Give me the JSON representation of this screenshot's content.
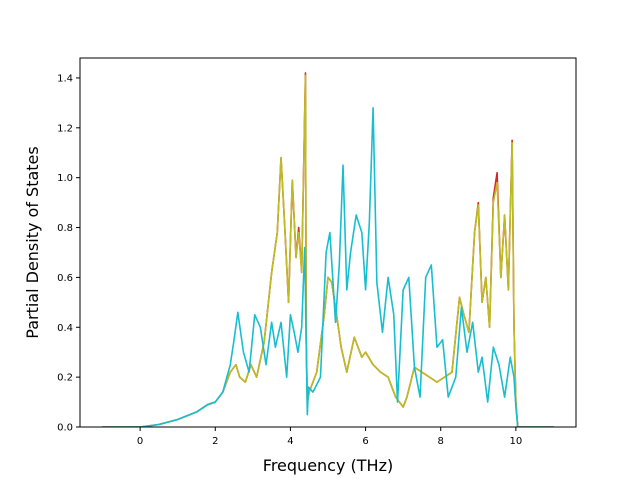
{
  "chart_data": {
    "type": "line",
    "title": "",
    "xlabel": "Frequency (THz)",
    "ylabel": "Partial Density of States",
    "xlim": [
      -1.6,
      11.6
    ],
    "ylim": [
      0,
      1.48
    ],
    "xticks": [
      0,
      2,
      4,
      6,
      8,
      10
    ],
    "yticks": [
      0.0,
      0.2,
      0.4,
      0.6,
      0.8,
      1.0,
      1.2,
      1.4
    ],
    "xtick_labels": [
      "0",
      "2",
      "4",
      "6",
      "8",
      "10"
    ],
    "ytick_labels": [
      "0.0",
      "0.2",
      "0.4",
      "0.6",
      "0.8",
      "1.0",
      "1.2",
      "1.4"
    ],
    "grid": false,
    "legend": "none",
    "series": [
      {
        "color": "#d62728",
        "x": [
          -1.0,
          0.0,
          0.5,
          1.0,
          1.5,
          1.8,
          2.0,
          2.2,
          2.4,
          2.55,
          2.65,
          2.8,
          2.95,
          3.1,
          3.3,
          3.5,
          3.65,
          3.75,
          3.85,
          3.95,
          4.05,
          4.15,
          4.22,
          4.3,
          4.4,
          4.42,
          4.45,
          4.5,
          4.7,
          4.9,
          5.0,
          5.1,
          5.2,
          5.35,
          5.5,
          5.7,
          5.9,
          6.0,
          6.2,
          6.4,
          6.6,
          6.8,
          7.0,
          7.1,
          7.3,
          7.5,
          7.7,
          7.9,
          8.1,
          8.3,
          8.5,
          8.6,
          8.75,
          8.9,
          9.0,
          9.1,
          9.2,
          9.3,
          9.4,
          9.5,
          9.6,
          9.7,
          9.8,
          9.9,
          9.95,
          10.0,
          10.05,
          11.0
        ],
        "values": [
          0.0,
          0.0,
          0.01,
          0.03,
          0.06,
          0.09,
          0.1,
          0.14,
          0.22,
          0.25,
          0.2,
          0.18,
          0.25,
          0.2,
          0.34,
          0.62,
          0.78,
          1.08,
          0.8,
          0.5,
          0.99,
          0.68,
          0.8,
          0.62,
          1.42,
          0.35,
          0.1,
          0.14,
          0.22,
          0.45,
          0.6,
          0.58,
          0.48,
          0.32,
          0.22,
          0.36,
          0.28,
          0.3,
          0.25,
          0.22,
          0.2,
          0.12,
          0.08,
          0.12,
          0.24,
          0.22,
          0.2,
          0.18,
          0.2,
          0.22,
          0.52,
          0.46,
          0.38,
          0.78,
          0.9,
          0.5,
          0.6,
          0.4,
          0.92,
          1.02,
          0.6,
          0.85,
          0.55,
          1.15,
          0.4,
          0.1,
          0.0,
          0.0
        ]
      },
      {
        "color": "#bcbd22",
        "x": [
          -1.0,
          0.0,
          0.5,
          1.0,
          1.5,
          1.8,
          2.0,
          2.2,
          2.4,
          2.55,
          2.65,
          2.8,
          2.95,
          3.1,
          3.3,
          3.5,
          3.65,
          3.75,
          3.85,
          3.95,
          4.05,
          4.15,
          4.22,
          4.3,
          4.4,
          4.42,
          4.45,
          4.5,
          4.7,
          4.9,
          5.0,
          5.1,
          5.2,
          5.35,
          5.5,
          5.7,
          5.9,
          6.0,
          6.2,
          6.4,
          6.6,
          6.8,
          7.0,
          7.1,
          7.3,
          7.5,
          7.7,
          7.9,
          8.1,
          8.3,
          8.5,
          8.6,
          8.75,
          8.9,
          9.0,
          9.1,
          9.2,
          9.3,
          9.4,
          9.5,
          9.6,
          9.7,
          9.8,
          9.9,
          9.95,
          10.0,
          10.05,
          11.0
        ],
        "values": [
          0.0,
          0.0,
          0.01,
          0.03,
          0.06,
          0.09,
          0.1,
          0.14,
          0.22,
          0.25,
          0.2,
          0.18,
          0.25,
          0.2,
          0.34,
          0.62,
          0.78,
          1.08,
          0.8,
          0.5,
          0.99,
          0.68,
          0.78,
          0.62,
          1.41,
          0.35,
          0.1,
          0.14,
          0.22,
          0.45,
          0.6,
          0.58,
          0.48,
          0.32,
          0.22,
          0.36,
          0.28,
          0.3,
          0.25,
          0.22,
          0.2,
          0.12,
          0.08,
          0.12,
          0.24,
          0.22,
          0.2,
          0.18,
          0.2,
          0.22,
          0.52,
          0.46,
          0.38,
          0.78,
          0.89,
          0.5,
          0.6,
          0.4,
          0.9,
          0.98,
          0.6,
          0.85,
          0.55,
          1.14,
          0.4,
          0.1,
          0.0,
          0.0
        ]
      },
      {
        "color": "#17becf",
        "x": [
          -1.0,
          0.0,
          0.5,
          1.0,
          1.5,
          1.8,
          2.0,
          2.2,
          2.4,
          2.5,
          2.6,
          2.75,
          2.9,
          3.05,
          3.2,
          3.35,
          3.5,
          3.6,
          3.75,
          3.9,
          4.0,
          4.1,
          4.2,
          4.3,
          4.38,
          4.45,
          4.48,
          4.6,
          4.8,
          4.95,
          5.05,
          5.2,
          5.3,
          5.4,
          5.5,
          5.6,
          5.75,
          5.9,
          6.0,
          6.1,
          6.2,
          6.3,
          6.45,
          6.6,
          6.75,
          6.85,
          7.0,
          7.15,
          7.3,
          7.45,
          7.6,
          7.75,
          7.9,
          8.05,
          8.2,
          8.4,
          8.55,
          8.7,
          8.85,
          9.0,
          9.1,
          9.25,
          9.4,
          9.55,
          9.7,
          9.85,
          9.95,
          10.0,
          10.05,
          11.0
        ],
        "values": [
          0.0,
          0.0,
          0.01,
          0.03,
          0.06,
          0.09,
          0.1,
          0.14,
          0.25,
          0.35,
          0.46,
          0.3,
          0.22,
          0.45,
          0.4,
          0.25,
          0.42,
          0.32,
          0.42,
          0.2,
          0.45,
          0.38,
          0.3,
          0.4,
          0.72,
          0.05,
          0.16,
          0.14,
          0.2,
          0.7,
          0.78,
          0.42,
          0.65,
          1.05,
          0.55,
          0.7,
          0.85,
          0.78,
          0.55,
          0.82,
          1.28,
          0.58,
          0.38,
          0.6,
          0.45,
          0.1,
          0.55,
          0.6,
          0.24,
          0.12,
          0.6,
          0.65,
          0.32,
          0.35,
          0.12,
          0.2,
          0.48,
          0.3,
          0.42,
          0.22,
          0.28,
          0.1,
          0.32,
          0.25,
          0.12,
          0.28,
          0.2,
          0.08,
          0.0,
          0.0
        ]
      }
    ]
  }
}
